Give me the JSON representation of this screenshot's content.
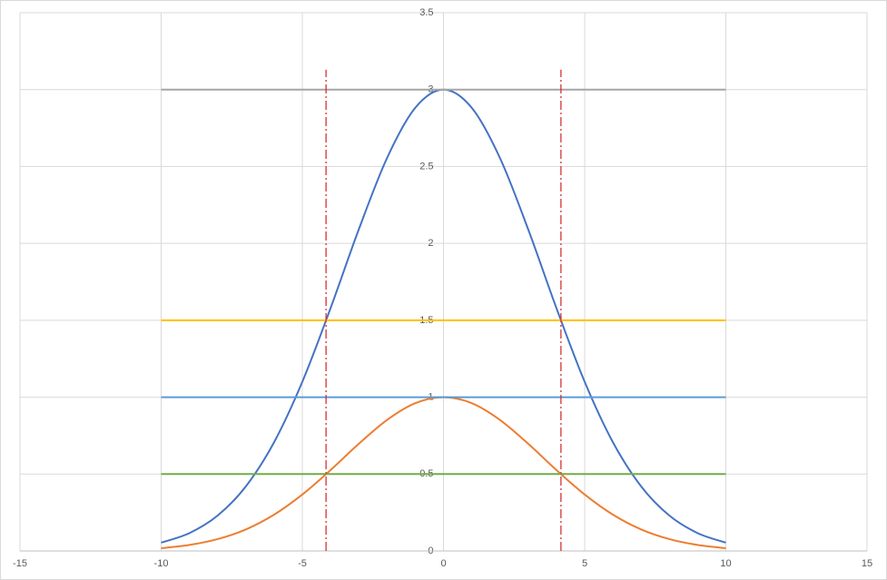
{
  "chart_data": {
    "type": "scatter",
    "xlim": [
      -15,
      15
    ],
    "xticks": [
      -15,
      -10,
      -5,
      0,
      5,
      10,
      15
    ],
    "ylim": [
      0,
      3.5
    ],
    "yticks": [
      0,
      0.5,
      1,
      1.5,
      2,
      2.5,
      3,
      3.5
    ],
    "grid": true,
    "series": [
      {
        "color": "#4472c4",
        "smooth": true,
        "x": [
          -10,
          -9,
          -8,
          -7,
          -6,
          -5,
          -4,
          -3,
          -2,
          -1,
          0,
          1,
          2,
          3,
          4,
          5,
          6,
          7,
          8,
          9,
          10
        ],
        "values": [
          0.054,
          0.116,
          0.23,
          0.42,
          0.707,
          1.1,
          1.579,
          2.091,
          2.555,
          2.882,
          3,
          2.882,
          2.555,
          2.091,
          1.579,
          1.1,
          0.707,
          0.42,
          0.23,
          0.116,
          0.054
        ]
      },
      {
        "color": "#ed7d31",
        "smooth": true,
        "x": [
          -10,
          -9,
          -8,
          -7,
          -6,
          -5,
          -4,
          -3,
          -2,
          -1,
          0,
          1,
          2,
          3,
          4,
          5,
          6,
          7,
          8,
          9,
          10
        ],
        "values": [
          0.018,
          0.039,
          0.077,
          0.14,
          0.236,
          0.367,
          0.526,
          0.697,
          0.852,
          0.961,
          1,
          0.961,
          0.852,
          0.697,
          0.526,
          0.367,
          0.236,
          0.14,
          0.077,
          0.039,
          0.018
        ]
      },
      {
        "color": "#a5a5a5",
        "x": [
          -10,
          10
        ],
        "values": [
          3,
          3
        ]
      },
      {
        "color": "#ffc000",
        "x": [
          -10,
          10
        ],
        "values": [
          1.5,
          1.5
        ]
      },
      {
        "color": "#5b9bd5",
        "x": [
          -10,
          10
        ],
        "values": [
          1,
          1
        ]
      },
      {
        "color": "#70ad47",
        "x": [
          -10,
          10
        ],
        "values": [
          0.5,
          0.5
        ]
      },
      {
        "color": "#d62828",
        "dash": "dashdot",
        "x": [
          -4.16,
          -4.16
        ],
        "values": [
          0,
          3.13
        ]
      },
      {
        "color": "#d62828",
        "dash": "dashdot",
        "x": [
          4.16,
          4.16
        ],
        "values": [
          0,
          3.13
        ]
      }
    ]
  }
}
